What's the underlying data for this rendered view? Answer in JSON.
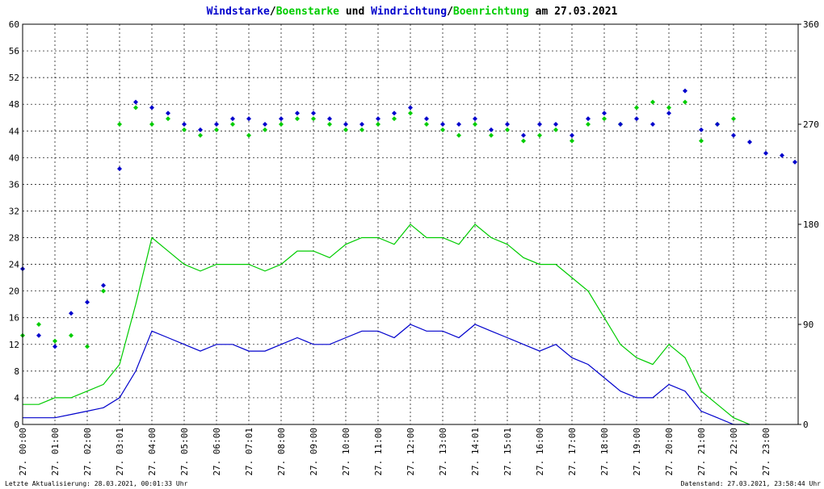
{
  "chart_data": {
    "type": "line",
    "title_parts": [
      {
        "text": "Windstarke",
        "color": "#0000cc"
      },
      {
        "text": "/",
        "color": "#000000"
      },
      {
        "text": "Boenstarke",
        "color": "#00cc00"
      },
      {
        "text": " und ",
        "color": "#000000"
      },
      {
        "text": "Windrichtung",
        "color": "#0000cc"
      },
      {
        "text": "/",
        "color": "#000000"
      },
      {
        "text": "Boenrichtung",
        "color": "#00cc00"
      },
      {
        "text": " am 27.03.2021",
        "color": "#000000"
      }
    ],
    "y_left": {
      "min": 0,
      "max": 60,
      "ticks": [
        0,
        4,
        8,
        12,
        16,
        20,
        24,
        28,
        32,
        36,
        40,
        44,
        48,
        52,
        56,
        60
      ]
    },
    "y_right": {
      "min": 0,
      "max": 360,
      "ticks": [
        0,
        90,
        180,
        270,
        360
      ]
    },
    "x_range": [
      0,
      24
    ],
    "x_ticks": [
      {
        "h": 0.0,
        "label": "27. 00:00"
      },
      {
        "h": 1.0,
        "label": "27. 01:00"
      },
      {
        "h": 2.0,
        "label": "27. 02:00"
      },
      {
        "h": 3.0,
        "label": "27. 03:01"
      },
      {
        "h": 4.0,
        "label": "27. 04:00"
      },
      {
        "h": 5.0,
        "label": "27. 05:00"
      },
      {
        "h": 6.0,
        "label": "27. 06:00"
      },
      {
        "h": 7.0,
        "label": "27. 07:01"
      },
      {
        "h": 8.0,
        "label": "27. 08:00"
      },
      {
        "h": 9.0,
        "label": "27. 09:00"
      },
      {
        "h": 10.0,
        "label": "27. 10:00"
      },
      {
        "h": 11.0,
        "label": "27. 11:00"
      },
      {
        "h": 12.0,
        "label": "27. 12:00"
      },
      {
        "h": 13.0,
        "label": "27. 13:00"
      },
      {
        "h": 14.0,
        "label": "27. 14:01"
      },
      {
        "h": 15.0,
        "label": "27. 15:01"
      },
      {
        "h": 16.0,
        "label": "27. 16:00"
      },
      {
        "h": 17.0,
        "label": "27. 17:00"
      },
      {
        "h": 18.0,
        "label": "27. 18:00"
      },
      {
        "h": 19.0,
        "label": "27. 19:00"
      },
      {
        "h": 20.0,
        "label": "27. 20:00"
      },
      {
        "h": 21.0,
        "label": "27. 21:00"
      },
      {
        "h": 22.0,
        "label": "27. 22:00"
      },
      {
        "h": 23.0,
        "label": "27. 23:00"
      }
    ],
    "grid": true,
    "series": [
      {
        "name": "Windstarke",
        "kind": "line",
        "axis": "left",
        "color": "#0000cc",
        "x": [
          0,
          0.5,
          1,
          1.5,
          2,
          2.5,
          3,
          3.5,
          4,
          4.5,
          5,
          5.5,
          6,
          6.5,
          7,
          7.5,
          8,
          8.5,
          9,
          9.5,
          10,
          10.5,
          11,
          11.5,
          12,
          12.5,
          13,
          13.5,
          14,
          14.5,
          15,
          15.5,
          16,
          16.5,
          17,
          17.5,
          18,
          18.5,
          19,
          19.5,
          20,
          20.5,
          21,
          21.5,
          22,
          22.5
        ],
        "values": [
          1,
          1,
          1,
          1.5,
          2,
          2.5,
          4,
          8,
          14,
          13,
          12,
          11,
          12,
          12,
          11,
          11,
          12,
          13,
          12,
          12,
          13,
          14,
          14,
          13,
          15,
          14,
          14,
          13,
          15,
          14,
          13,
          12,
          11,
          12,
          10,
          9,
          7,
          5,
          4,
          4,
          6,
          5,
          2,
          1,
          0,
          0
        ]
      },
      {
        "name": "Boenstarke",
        "kind": "line",
        "axis": "left",
        "color": "#00cc00",
        "x": [
          0,
          0.5,
          1,
          1.5,
          2,
          2.5,
          3,
          3.5,
          4,
          4.5,
          5,
          5.5,
          6,
          6.5,
          7,
          7.5,
          8,
          8.5,
          9,
          9.5,
          10,
          10.5,
          11,
          11.5,
          12,
          12.5,
          13,
          13.5,
          14,
          14.5,
          15,
          15.5,
          16,
          16.5,
          17,
          17.5,
          18,
          18.5,
          19,
          19.5,
          20,
          20.5,
          21,
          21.5,
          22,
          22.5
        ],
        "values": [
          3,
          3,
          4,
          4,
          5,
          6,
          9,
          18,
          28,
          26,
          24,
          23,
          24,
          24,
          24,
          23,
          24,
          26,
          26,
          25,
          27,
          28,
          28,
          27,
          30,
          28,
          28,
          27,
          30,
          28,
          27,
          25,
          24,
          24,
          22,
          20,
          16,
          12,
          10,
          9,
          12,
          10,
          5,
          3,
          1,
          0
        ]
      },
      {
        "name": "Windrichtung",
        "kind": "points",
        "axis": "right",
        "color": "#0000cc",
        "x": [
          0,
          0.5,
          1,
          1.5,
          2,
          2.5,
          3,
          3.5,
          4,
          4.5,
          5,
          5.5,
          6,
          6.5,
          7,
          7.5,
          8,
          8.5,
          9,
          9.5,
          10,
          10.5,
          11,
          11.5,
          12,
          12.5,
          13,
          13.5,
          14,
          14.5,
          15,
          15.5,
          16,
          16.5,
          17,
          17.5,
          18,
          18.5,
          19,
          19.5,
          20,
          20.5,
          21,
          21.5,
          22,
          22.5,
          23,
          23.5,
          23.9
        ],
        "values": [
          140,
          80,
          70,
          100,
          110,
          125,
          230,
          290,
          285,
          280,
          270,
          265,
          270,
          275,
          275,
          270,
          275,
          280,
          280,
          275,
          270,
          270,
          275,
          280,
          285,
          275,
          270,
          270,
          275,
          265,
          270,
          260,
          270,
          270,
          260,
          275,
          280,
          270,
          275,
          270,
          280,
          300,
          265,
          270,
          260,
          254,
          244,
          242,
          236
        ]
      },
      {
        "name": "Boenrichtung",
        "kind": "points",
        "axis": "right",
        "color": "#00cc00",
        "x": [
          0,
          0.5,
          1,
          1.5,
          2,
          2.5,
          3,
          3.5,
          4,
          4.5,
          5,
          5.5,
          6,
          6.5,
          7,
          7.5,
          8,
          8.5,
          9,
          9.5,
          10,
          10.5,
          11,
          11.5,
          12,
          12.5,
          13,
          13.5,
          14,
          14.5,
          15,
          15.5,
          16,
          16.5,
          17,
          17.5,
          18,
          18.5,
          19,
          19.5,
          20,
          20.5,
          21,
          21.5,
          22
        ],
        "values": [
          80,
          90,
          75,
          80,
          70,
          120,
          270,
          285,
          270,
          275,
          265,
          260,
          265,
          270,
          260,
          265,
          270,
          275,
          275,
          270,
          265,
          265,
          270,
          275,
          280,
          270,
          265,
          260,
          270,
          260,
          265,
          255,
          260,
          265,
          255,
          270,
          275,
          270,
          285,
          290,
          285,
          290,
          255,
          270,
          275
        ]
      }
    ],
    "footer_left": "Letzte Aktualisierung: 28.03.2021, 00:01:33 Uhr",
    "footer_right": "Datenstand: 27.03.2021, 23:58:44 Uhr"
  }
}
